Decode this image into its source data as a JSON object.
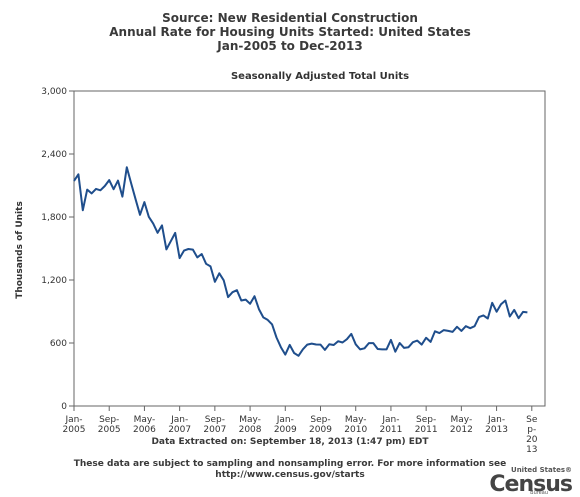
{
  "header": {
    "line1": "Source: New Residential Construction",
    "line2": "Annual Rate for Housing Units Started: United States",
    "line3": "Jan-2005 to Dec-2013"
  },
  "footer": {
    "extracted": "Data Extracted on: September 18, 2013 (1:47 pm) EDT",
    "note1": "These data are subject to sampling and nonsampling error. For more information see",
    "note2": "http://www.census.gov/starts"
  },
  "logo": {
    "small_text": "United States®",
    "big_text": "Census",
    "bureau_text": "Bureau"
  },
  "colors": {
    "line": "#1f4e8c",
    "axis": "#666666",
    "grid": "#cccccc"
  },
  "chart_data": {
    "type": "line",
    "title": "Seasonally Adjusted Total Units",
    "xlabel": "",
    "ylabel": "Thousands of Units",
    "ylim": [
      0,
      3000
    ],
    "grid": false,
    "yticks": [
      0,
      600,
      1200,
      1800,
      2400,
      3000
    ],
    "ytick_labels": [
      "0",
      "600",
      "1,200",
      "1,800",
      "2,400",
      "3,000"
    ],
    "xticks": [
      {
        "index": 0,
        "lines": [
          "Jan-",
          "2005"
        ]
      },
      {
        "index": 8,
        "lines": [
          "Sep-",
          "2005"
        ]
      },
      {
        "index": 16,
        "lines": [
          "May-",
          "2006"
        ]
      },
      {
        "index": 24,
        "lines": [
          "Jan-",
          "2007"
        ]
      },
      {
        "index": 32,
        "lines": [
          "Sep-",
          "2007"
        ]
      },
      {
        "index": 40,
        "lines": [
          "May-",
          "2008"
        ]
      },
      {
        "index": 48,
        "lines": [
          "Jan-",
          "2009"
        ]
      },
      {
        "index": 56,
        "lines": [
          "Sep-",
          "2009"
        ]
      },
      {
        "index": 64,
        "lines": [
          "May-",
          "2010"
        ]
      },
      {
        "index": 72,
        "lines": [
          "Jan-",
          "2011"
        ]
      },
      {
        "index": 80,
        "lines": [
          "Sep-",
          "2011"
        ]
      },
      {
        "index": 88,
        "lines": [
          "May-",
          "2012"
        ]
      },
      {
        "index": 96,
        "lines": [
          "Jan-",
          "2013"
        ]
      },
      {
        "index": 104,
        "lines": [
          "Se",
          "p-",
          "20",
          "13"
        ]
      }
    ],
    "x_count": 108,
    "series": [
      {
        "name": "",
        "values": [
          2144,
          2207,
          1864,
          2061,
          2025,
          2068,
          2054,
          2095,
          2151,
          2065,
          2147,
          1994,
          2273,
          2119,
          1969,
          1821,
          1942,
          1802,
          1737,
          1650,
          1720,
          1491,
          1570,
          1649,
          1409,
          1480,
          1495,
          1490,
          1415,
          1448,
          1354,
          1330,
          1183,
          1264,
          1197,
          1037,
          1084,
          1103,
          1005,
          1013,
          973,
          1046,
          923,
          844,
          820,
          777,
          652,
          560,
          490,
          582,
          505,
          478,
          540,
          585,
          594,
          586,
          585,
          534,
          588,
          581,
          617,
          605,
          636,
          687,
          588,
          539,
          550,
          599,
          599,
          543,
          539,
          539,
          630,
          517,
          600,
          553,
          560,
          608,
          623,
          585,
          650,
          610,
          711,
          694,
          723,
          715,
          706,
          754,
          715,
          760,
          741,
          760,
          847,
          863,
          833,
          983,
          898,
          969,
          1005,
          852,
          915,
          836,
          896,
          891
        ]
      }
    ]
  }
}
